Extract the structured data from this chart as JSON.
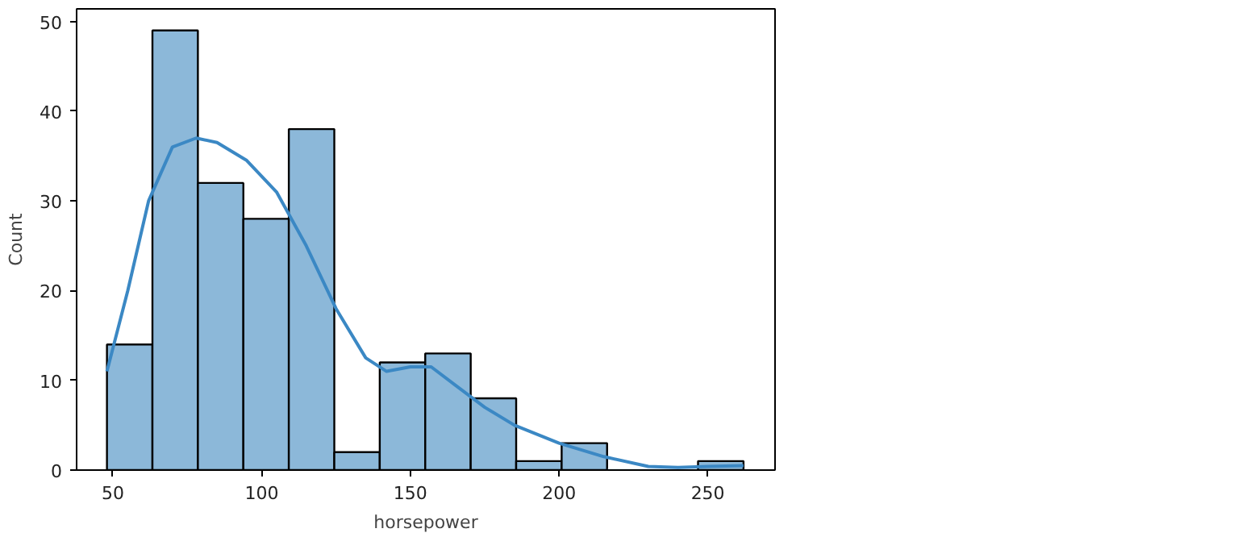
{
  "chart_data": {
    "type": "histogram",
    "xlabel": "horsepower",
    "ylabel": "Count",
    "xlim": [
      37.8,
      272.6
    ],
    "ylim": [
      0,
      51.4
    ],
    "xticks": [
      50,
      100,
      150,
      200,
      250
    ],
    "yticks": [
      0,
      10,
      20,
      30,
      40,
      50
    ],
    "grid": false,
    "series": [
      {
        "type": "histogram",
        "color": "#8cb8d9",
        "bins": [
          48,
          63.29,
          78.57,
          93.86,
          109.14,
          124.43,
          139.71,
          155,
          170.29,
          185.57,
          200.86,
          216.14,
          231.43,
          246.71,
          262
        ],
        "values": [
          14,
          49,
          32,
          28,
          38,
          2,
          12,
          13,
          8,
          1,
          3,
          0,
          0,
          1
        ]
      },
      {
        "type": "line",
        "color": "#3b88c4",
        "x": [
          48,
          55,
          62,
          70,
          78,
          85,
          95,
          105,
          115,
          125,
          135,
          142,
          150,
          157,
          165,
          175,
          185,
          200,
          215,
          230,
          240,
          250,
          262
        ],
        "values": [
          11,
          20,
          30,
          36,
          37,
          36.5,
          34.5,
          31,
          25,
          18,
          12.5,
          11,
          11.5,
          11.5,
          9.5,
          7,
          5,
          3,
          1.5,
          0.4,
          0.3,
          0.4,
          0.5
        ]
      }
    ]
  }
}
